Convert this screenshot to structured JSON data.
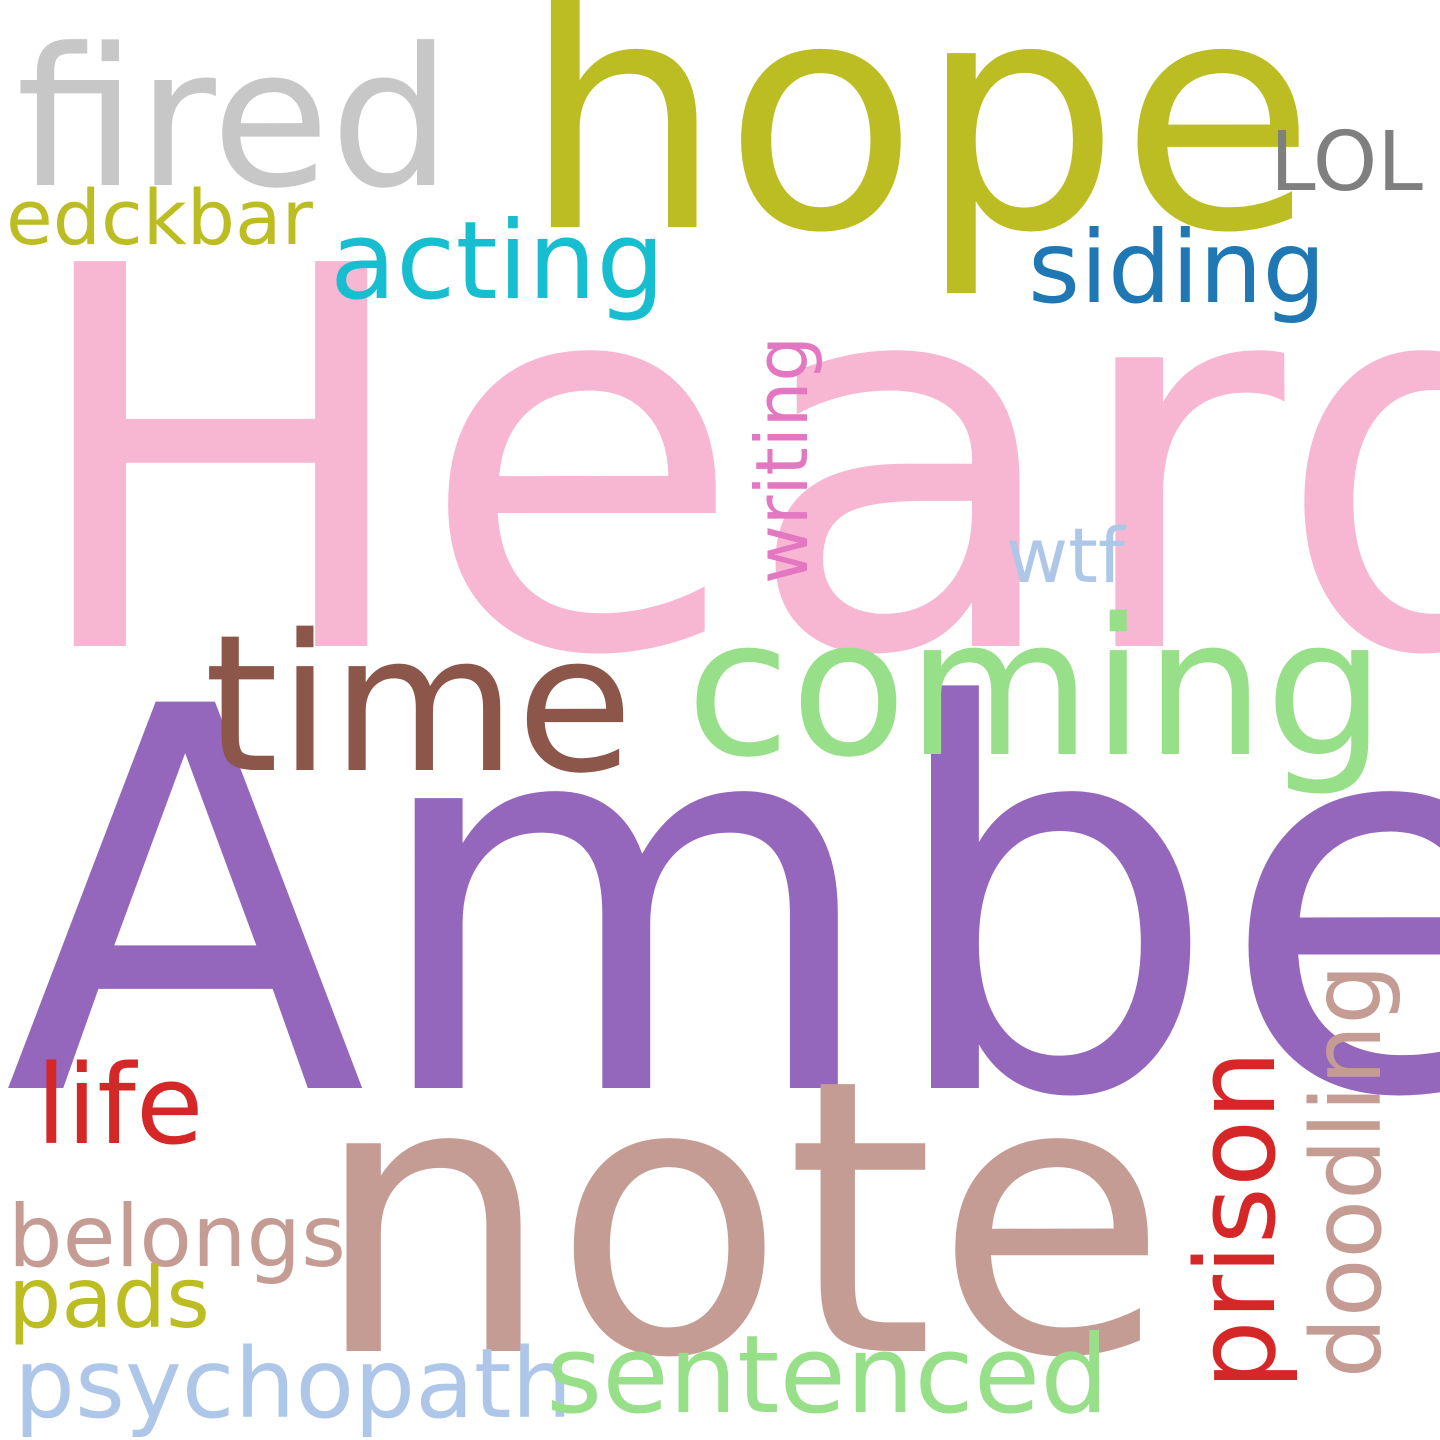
{
  "words": {
    "heard": {
      "text": "Heard",
      "color": "#f7b6d2",
      "orientation": "horizontal"
    },
    "amber": {
      "text": "Amber",
      "color": "#9467bd",
      "orientation": "horizontal"
    },
    "note": {
      "text": "note",
      "color": "#c49c94",
      "orientation": "horizontal"
    },
    "hope": {
      "text": "hope",
      "color": "#bcbd22",
      "orientation": "horizontal"
    },
    "fired": {
      "text": "fired",
      "color": "#c7c7c7",
      "orientation": "horizontal"
    },
    "coming": {
      "text": "coming",
      "color": "#98df8a",
      "orientation": "horizontal"
    },
    "time": {
      "text": "time",
      "color": "#8c564b",
      "orientation": "horizontal"
    },
    "acting": {
      "text": "acting",
      "color": "#17becf",
      "orientation": "horizontal"
    },
    "siding": {
      "text": "siding",
      "color": "#1f77b4",
      "orientation": "horizontal"
    },
    "edckbar": {
      "text": "edckbar",
      "color": "#bcbd22",
      "orientation": "horizontal"
    },
    "lol": {
      "text": "LOL",
      "color": "#7f7f7f",
      "orientation": "horizontal"
    },
    "writing": {
      "text": "writing",
      "color": "#e377c2",
      "orientation": "vertical"
    },
    "wtf": {
      "text": "wtf",
      "color": "#aec7e8",
      "orientation": "horizontal"
    },
    "life": {
      "text": "life",
      "color": "#d62728",
      "orientation": "horizontal"
    },
    "belongs": {
      "text": "belongs",
      "color": "#c49c94",
      "orientation": "horizontal"
    },
    "pads": {
      "text": "pads",
      "color": "#bcbd22",
      "orientation": "horizontal"
    },
    "psychopath": {
      "text": "psychopath",
      "color": "#aec7e8",
      "orientation": "horizontal"
    },
    "sentenced": {
      "text": "sentenced",
      "color": "#98df8a",
      "orientation": "horizontal"
    },
    "prison": {
      "text": "prison",
      "color": "#d62728",
      "orientation": "vertical"
    },
    "doodling": {
      "text": "doodling",
      "color": "#c49c94",
      "orientation": "vertical"
    }
  }
}
